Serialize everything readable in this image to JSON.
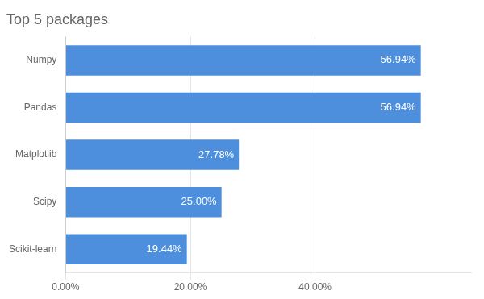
{
  "chart_data": {
    "type": "bar",
    "orientation": "horizontal",
    "title": "Top 5 packages",
    "categories": [
      "Numpy",
      "Pandas",
      "Matplotlib",
      "Scipy",
      "Scikit-learn"
    ],
    "values": [
      56.94,
      56.94,
      27.78,
      25.0,
      19.44
    ],
    "value_labels": [
      "56.94%",
      "56.94%",
      "27.78%",
      "25.00%",
      "19.44%"
    ],
    "color": "#4d8fdc",
    "xlim": [
      0,
      65
    ],
    "xticks": [
      {
        "value": 0,
        "label": "0.00%"
      },
      {
        "value": 20,
        "label": "20.00%"
      },
      {
        "value": 40,
        "label": "40.00%"
      }
    ],
    "grid": true,
    "data_labels": true
  }
}
